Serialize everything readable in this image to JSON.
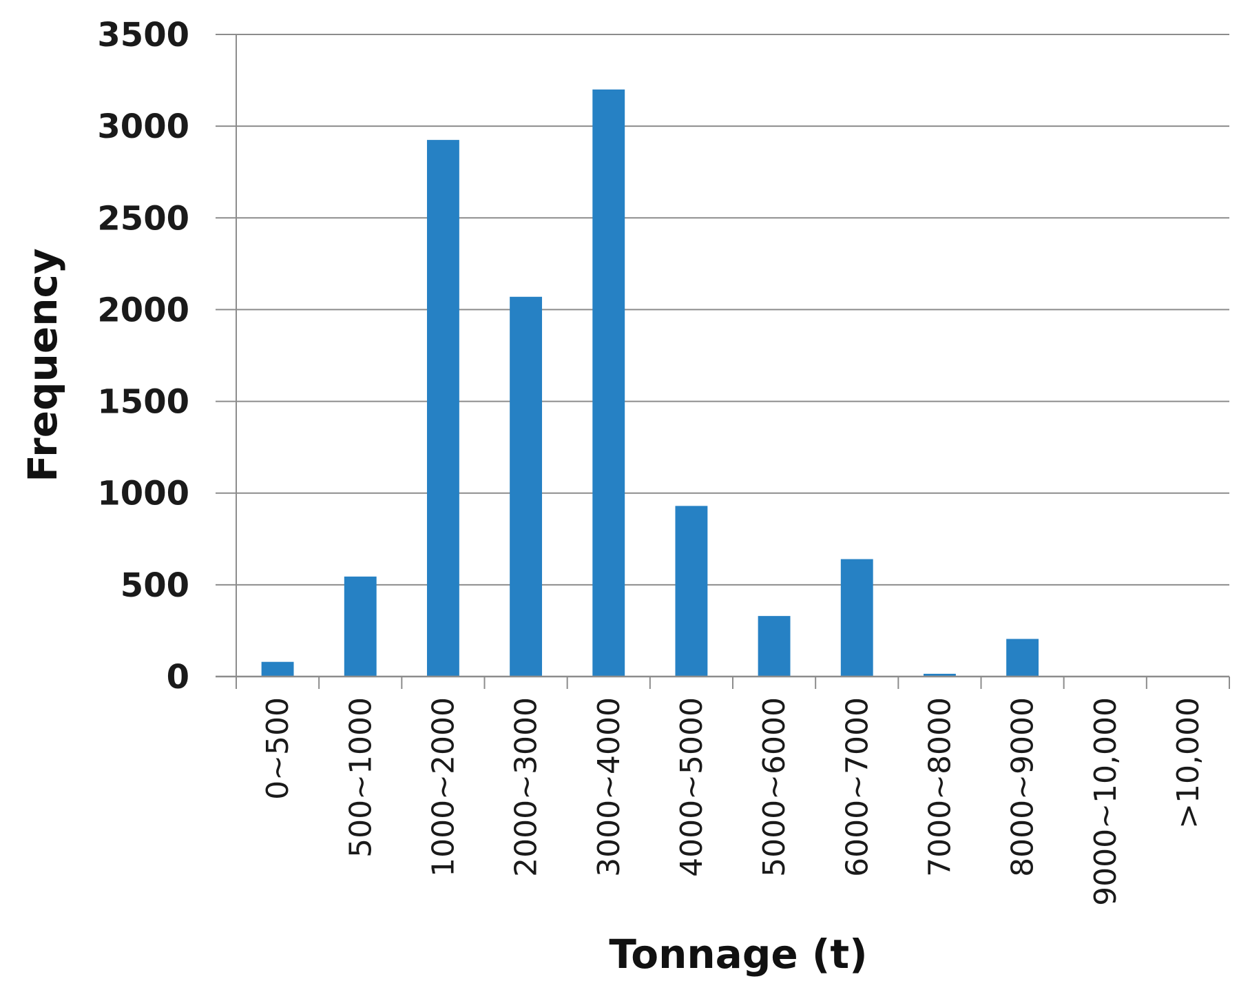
{
  "chart_data": {
    "type": "bar",
    "title": "",
    "xlabel": "Tonnage (t)",
    "ylabel": "Frequency",
    "categories": [
      "0~500",
      "500~1000",
      "1000~2000",
      "2000~3000",
      "3000~4000",
      "4000~5000",
      "5000~6000",
      "6000~7000",
      "7000~8000",
      "8000~9000",
      "9000~10,000",
      ">10,000"
    ],
    "values": [
      80,
      545,
      2925,
      2070,
      3200,
      930,
      330,
      640,
      15,
      205,
      0,
      0
    ],
    "yticks": [
      "0",
      "500",
      "1000",
      "1500",
      "2000",
      "2500",
      "3000",
      "3500"
    ],
    "ylim": [
      0,
      3500
    ],
    "grid": true,
    "legend": "none",
    "colors": {
      "bar": "#2681C4",
      "grid": "#8c8c8c",
      "axis": "#8c8c8c"
    }
  }
}
